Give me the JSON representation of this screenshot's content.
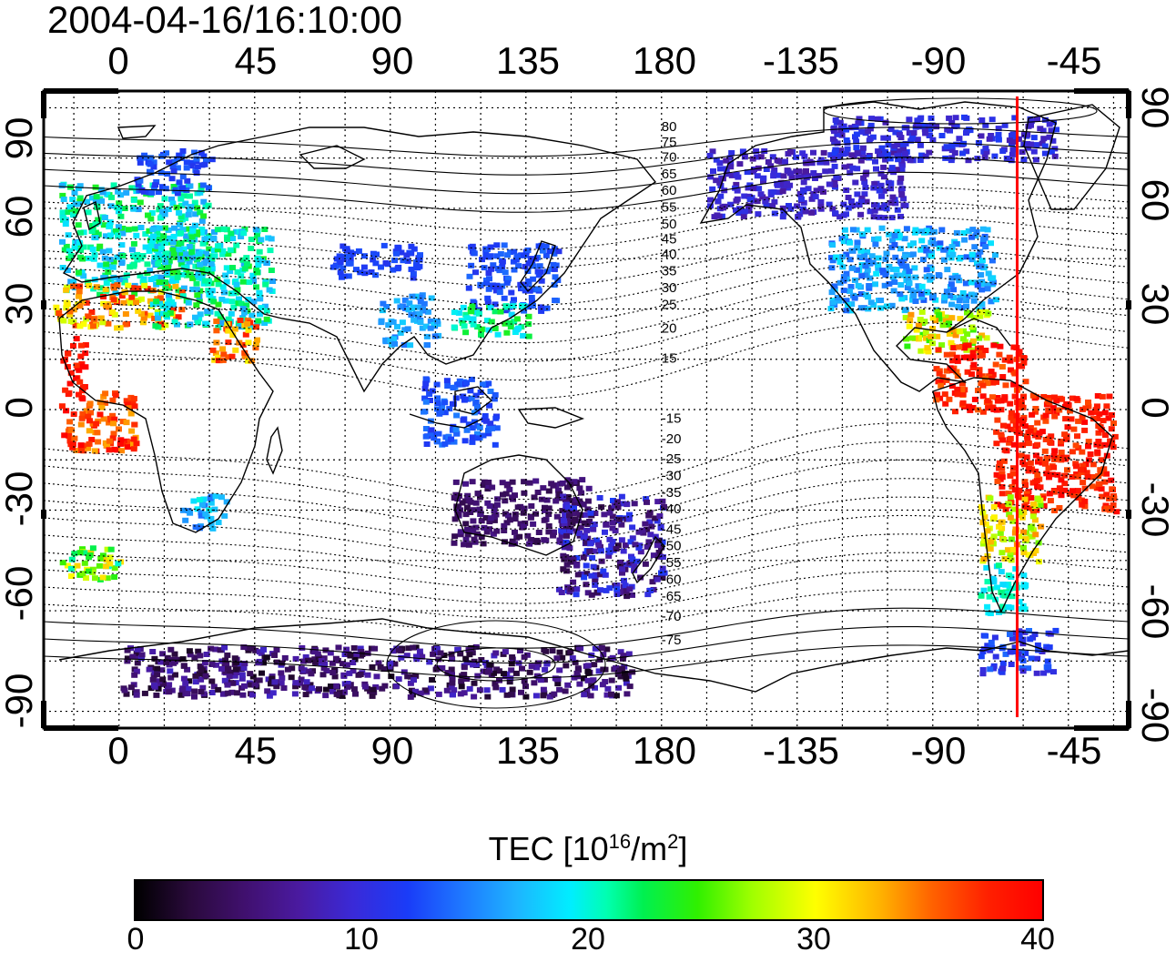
{
  "title": "2004-04-16/16:10:00",
  "axes": {
    "lon_ticks_top": [
      "0",
      "45",
      "90",
      "135",
      "180",
      "-135",
      "-90",
      "-45"
    ],
    "lon_ticks_bottom": [
      "0",
      "45",
      "90",
      "135",
      "180",
      "-135",
      "-90",
      "-45"
    ],
    "lat_ticks": [
      "90",
      "60",
      "30",
      "0",
      "-30",
      "-60",
      "-90"
    ]
  },
  "map": {
    "lon_range": [
      -25,
      335
    ],
    "lat_range": [
      -95,
      95
    ],
    "grid": true,
    "marker_meridian": {
      "lon": -62,
      "color": "#ff0000"
    },
    "contour_labels": [
      {
        "text": "80",
        "lon": 180,
        "lat": 83
      },
      {
        "text": "75",
        "lon": 180,
        "lat": 78.5
      },
      {
        "text": "70",
        "lon": 180,
        "lat": 74
      },
      {
        "text": "65",
        "lon": 180,
        "lat": 69
      },
      {
        "text": "60",
        "lon": 180,
        "lat": 64
      },
      {
        "text": "55",
        "lon": 180,
        "lat": 59
      },
      {
        "text": "50",
        "lon": 180,
        "lat": 54
      },
      {
        "text": "45",
        "lon": 180,
        "lat": 49.5
      },
      {
        "text": "40",
        "lon": 180,
        "lat": 45
      },
      {
        "text": "35",
        "lon": 180,
        "lat": 40
      },
      {
        "text": "30",
        "lon": 180,
        "lat": 35
      },
      {
        "text": "25",
        "lon": 180,
        "lat": 30
      },
      {
        "text": "20",
        "lon": 180,
        "lat": 23
      },
      {
        "text": "15",
        "lon": 180,
        "lat": 14
      },
      {
        "text": "-15",
        "lon": 180,
        "lat": -4
      },
      {
        "text": "-20",
        "lon": 180,
        "lat": -10
      },
      {
        "text": "-25",
        "lon": 180,
        "lat": -16
      },
      {
        "text": "-30",
        "lon": 180,
        "lat": -21
      },
      {
        "text": "-35",
        "lon": 180,
        "lat": -26
      },
      {
        "text": "-40",
        "lon": 180,
        "lat": -31
      },
      {
        "text": "-45",
        "lon": 180,
        "lat": -37
      },
      {
        "text": "-50",
        "lon": 180,
        "lat": -42
      },
      {
        "text": "-55",
        "lon": 180,
        "lat": -47
      },
      {
        "text": "-60",
        "lon": 180,
        "lat": -52
      },
      {
        "text": "-65",
        "lon": 180,
        "lat": -57
      },
      {
        "text": "-70",
        "lon": 180,
        "lat": -63
      },
      {
        "text": "-75",
        "lon": 180,
        "lat": -70
      }
    ],
    "tec_regions": [
      {
        "lon": [
          -20,
          30
        ],
        "lat": [
          35,
          68
        ],
        "tec": [
          16,
          24
        ]
      },
      {
        "lon": [
          -22,
          20
        ],
        "lat": [
          25,
          38
        ],
        "tec": [
          28,
          38
        ]
      },
      {
        "lon": [
          10,
          50
        ],
        "lat": [
          25,
          55
        ],
        "tec": [
          16,
          24
        ]
      },
      {
        "lon": [
          30,
          45
        ],
        "lat": [
          15,
          28
        ],
        "tec": [
          30,
          38
        ]
      },
      {
        "lon": [
          -20,
          -12
        ],
        "lat": [
          5,
          22
        ],
        "tec": [
          37,
          40
        ]
      },
      {
        "lon": [
          -20,
          5
        ],
        "lat": [
          -12,
          6
        ],
        "tec": [
          33,
          40
        ]
      },
      {
        "lon": [
          20,
          35
        ],
        "lat": [
          -35,
          -25
        ],
        "tec": [
          14,
          20
        ]
      },
      {
        "lon": [
          -20,
          0
        ],
        "lat": [
          -50,
          -40
        ],
        "tec": [
          20,
          32
        ]
      },
      {
        "lon": [
          5,
          30
        ],
        "lat": [
          65,
          78
        ],
        "tec": [
          11,
          14
        ]
      },
      {
        "lon": [
          70,
          100
        ],
        "lat": [
          40,
          50
        ],
        "tec": [
          11,
          13
        ]
      },
      {
        "lon": [
          85,
          105
        ],
        "lat": [
          20,
          35
        ],
        "tec": [
          14,
          18
        ]
      },
      {
        "lon": [
          115,
          145
        ],
        "lat": [
          30,
          50
        ],
        "tec": [
          11,
          14
        ]
      },
      {
        "lon": [
          110,
          135
        ],
        "lat": [
          22,
          32
        ],
        "tec": [
          18,
          24
        ]
      },
      {
        "lon": [
          100,
          125
        ],
        "lat": [
          -10,
          10
        ],
        "tec": [
          11,
          15
        ]
      },
      {
        "lon": [
          110,
          155
        ],
        "lat": [
          -40,
          -20
        ],
        "tec": [
          3,
          6
        ]
      },
      {
        "lon": [
          145,
          180
        ],
        "lat": [
          -55,
          -25
        ],
        "tec": [
          3,
          12
        ]
      },
      {
        "lon": [
          0,
          170
        ],
        "lat": [
          -85,
          -70
        ],
        "tec": [
          1,
          9
        ]
      },
      {
        "lon": [
          195,
          260
        ],
        "lat": [
          58,
          78
        ],
        "tec": [
          7,
          11
        ]
      },
      {
        "lon": [
          235,
          310
        ],
        "lat": [
          75,
          88
        ],
        "tec": [
          8,
          12
        ]
      },
      {
        "lon": [
          235,
          290
        ],
        "lat": [
          30,
          55
        ],
        "tec": [
          13,
          19
        ]
      },
      {
        "lon": [
          260,
          290
        ],
        "lat": [
          18,
          30
        ],
        "tec": [
          24,
          34
        ]
      },
      {
        "lon": [
          270,
          300
        ],
        "lat": [
          0,
          20
        ],
        "tec": [
          35,
          40
        ]
      },
      {
        "lon": [
          290,
          330
        ],
        "lat": [
          -30,
          5
        ],
        "tec": [
          36,
          40
        ]
      },
      {
        "lon": [
          285,
          305
        ],
        "lat": [
          -45,
          -25
        ],
        "tec": [
          26,
          34
        ]
      },
      {
        "lon": [
          285,
          300
        ],
        "lat": [
          -60,
          -45
        ],
        "tec": [
          18,
          22
        ]
      },
      {
        "lon": [
          285,
          310
        ],
        "lat": [
          -78,
          -65
        ],
        "tec": [
          9,
          14
        ]
      }
    ]
  },
  "colorbar": {
    "label_prefix": "TEC  [10",
    "label_exp1": "16",
    "label_mid": "/m",
    "label_exp2": "2",
    "label_suffix": "]",
    "ticks": [
      "0",
      "10",
      "20",
      "30",
      "40"
    ],
    "range": [
      0,
      40
    ]
  }
}
